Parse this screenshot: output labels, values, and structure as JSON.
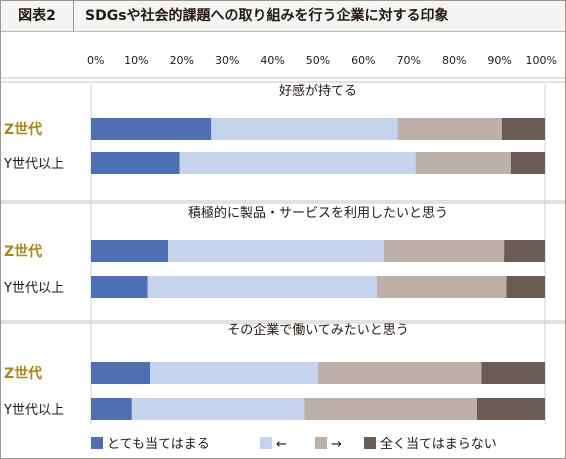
{
  "header": {
    "figure_label": "図表2",
    "title": "SDGsや社会的課題への取り組みを行う企業に対する印象"
  },
  "chart_data": {
    "type": "bar",
    "orientation": "horizontal",
    "stacked": true,
    "percent_scale": true,
    "xlim": [
      0,
      100
    ],
    "ticks": [
      "0%",
      "10%",
      "20%",
      "30%",
      "40%",
      "50%",
      "60%",
      "70%",
      "80%",
      "90%",
      "100%"
    ],
    "grid": false,
    "legend_position": "bottom",
    "legend": [
      {
        "label": "とても当てはまる",
        "color": "#4f6fb5"
      },
      {
        "label": "←",
        "color": "#c6d3ec"
      },
      {
        "label": "→",
        "color": "#bdb0a9"
      },
      {
        "label": "全く当てはまらない",
        "color": "#6b5b55"
      }
    ],
    "groups": [
      {
        "title": "好感が持てる",
        "rows": [
          {
            "label": "Z世代",
            "highlight": true,
            "values": [
              26.5,
              41,
              23,
              9.5
            ]
          },
          {
            "label": "Y世代以上",
            "highlight": false,
            "values": [
              19.5,
              52,
              21,
              7.5
            ]
          }
        ]
      },
      {
        "title": "積極的に製品・サービスを利用したいと思う",
        "rows": [
          {
            "label": "Z世代",
            "highlight": true,
            "values": [
              17,
              47.5,
              26.5,
              9
            ]
          },
          {
            "label": "Y世代以上",
            "highlight": false,
            "values": [
              12.5,
              50.5,
              28.5,
              8.5
            ]
          }
        ]
      },
      {
        "title": "その企業で働いてみたいと思う",
        "rows": [
          {
            "label": "Z世代",
            "highlight": true,
            "values": [
              13,
              37,
              36,
              14
            ]
          },
          {
            "label": "Y世代以上",
            "highlight": false,
            "values": [
              9,
              38,
              38,
              15
            ]
          }
        ]
      }
    ]
  }
}
